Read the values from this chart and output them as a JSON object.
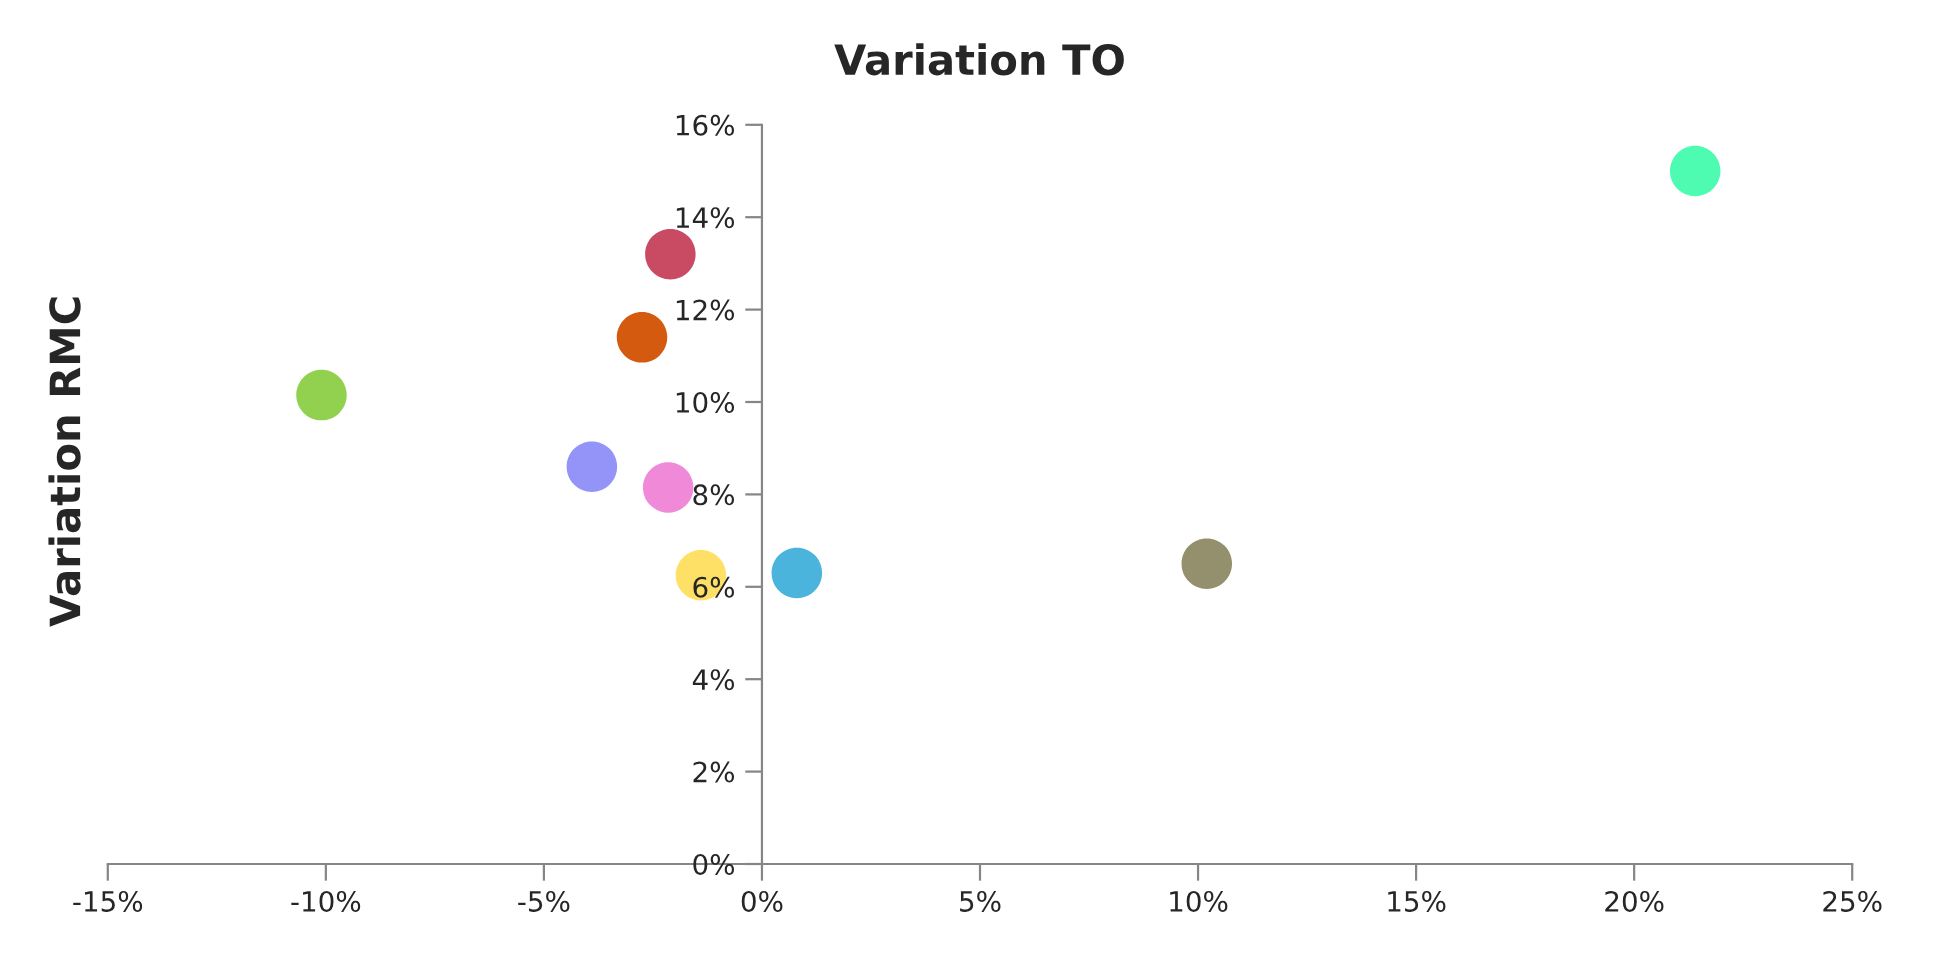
{
  "chart_data": {
    "type": "scatter",
    "title": "Variation TO",
    "ylabel": "Variation RMC",
    "x": [
      21.4,
      -2.1,
      -2.75,
      -10.1,
      -3.9,
      -2.15,
      -1.4,
      0.8,
      10.2
    ],
    "values": [
      15.0,
      13.2,
      11.4,
      10.15,
      8.6,
      8.15,
      6.25,
      6.3,
      6.5
    ],
    "colors": [
      "#4dfcb0",
      "#c84b63",
      "#d45a10",
      "#92d050",
      "#9494f8",
      "#f08ad8",
      "#ffe066",
      "#4ab4dc",
      "#948f6c"
    ],
    "marker": "circle",
    "xlim": [
      -15,
      25
    ],
    "xticks": [
      {
        "value": -15,
        "label": "-15%"
      },
      {
        "value": -10,
        "label": "-10%"
      },
      {
        "value": -5,
        "label": "-5%"
      },
      {
        "value": 0,
        "label": "0%"
      },
      {
        "value": 5,
        "label": "5%"
      },
      {
        "value": 10,
        "label": "10%"
      },
      {
        "value": 15,
        "label": "15%"
      },
      {
        "value": 20,
        "label": "20%"
      },
      {
        "value": 25,
        "label": "25%"
      }
    ],
    "ylim": [
      0,
      16
    ],
    "yticks": [
      {
        "value": 0,
        "label": "0%"
      },
      {
        "value": 2,
        "label": "2%"
      },
      {
        "value": 4,
        "label": "4%"
      },
      {
        "value": 6,
        "label": "6%"
      },
      {
        "value": 8,
        "label": "8%"
      },
      {
        "value": 10,
        "label": "10%"
      },
      {
        "value": 12,
        "label": "12%"
      },
      {
        "value": 14,
        "label": "14%"
      },
      {
        "value": 16,
        "label": "16%"
      }
    ],
    "grid": false
  }
}
